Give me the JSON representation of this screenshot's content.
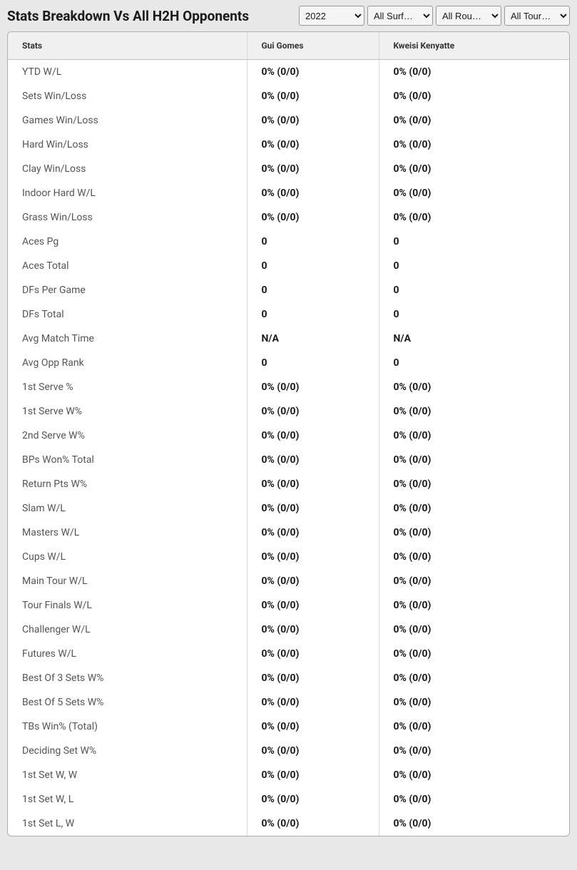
{
  "header": {
    "title": "Stats Breakdown Vs All H2H Opponents",
    "filters": {
      "year": {
        "selected": "2022",
        "options": [
          "2022"
        ]
      },
      "surface": {
        "selected": "All Surf…",
        "options": [
          "All Surf…"
        ]
      },
      "round": {
        "selected": "All Rou…",
        "options": [
          "All Rou…"
        ]
      },
      "tour": {
        "selected": "All Tour…",
        "options": [
          "All Tour…"
        ]
      }
    }
  },
  "table": {
    "columns": {
      "stats": "Stats",
      "player1": "Gui Gomes",
      "player2": "Kweisi Kenyatte"
    },
    "rows": [
      {
        "label": "YTD W/L",
        "p1": "0% (0/0)",
        "p2": "0% (0/0)"
      },
      {
        "label": "Sets Win/Loss",
        "p1": "0% (0/0)",
        "p2": "0% (0/0)"
      },
      {
        "label": "Games Win/Loss",
        "p1": "0% (0/0)",
        "p2": "0% (0/0)"
      },
      {
        "label": "Hard Win/Loss",
        "p1": "0% (0/0)",
        "p2": "0% (0/0)"
      },
      {
        "label": "Clay Win/Loss",
        "p1": "0% (0/0)",
        "p2": "0% (0/0)"
      },
      {
        "label": "Indoor Hard W/L",
        "p1": "0% (0/0)",
        "p2": "0% (0/0)"
      },
      {
        "label": "Grass Win/Loss",
        "p1": "0% (0/0)",
        "p2": "0% (0/0)"
      },
      {
        "label": "Aces Pg",
        "p1": "0",
        "p2": "0"
      },
      {
        "label": "Aces Total",
        "p1": "0",
        "p2": "0"
      },
      {
        "label": "DFs Per Game",
        "p1": "0",
        "p2": "0"
      },
      {
        "label": "DFs Total",
        "p1": "0",
        "p2": "0"
      },
      {
        "label": "Avg Match Time",
        "p1": "N/A",
        "p2": "N/A"
      },
      {
        "label": "Avg Opp Rank",
        "p1": "0",
        "p2": "0"
      },
      {
        "label": "1st Serve %",
        "p1": "0% (0/0)",
        "p2": "0% (0/0)"
      },
      {
        "label": "1st Serve W%",
        "p1": "0% (0/0)",
        "p2": "0% (0/0)"
      },
      {
        "label": "2nd Serve W%",
        "p1": "0% (0/0)",
        "p2": "0% (0/0)"
      },
      {
        "label": "BPs Won% Total",
        "p1": "0% (0/0)",
        "p2": "0% (0/0)"
      },
      {
        "label": "Return Pts W%",
        "p1": "0% (0/0)",
        "p2": "0% (0/0)"
      },
      {
        "label": "Slam W/L",
        "p1": "0% (0/0)",
        "p2": "0% (0/0)"
      },
      {
        "label": "Masters W/L",
        "p1": "0% (0/0)",
        "p2": "0% (0/0)"
      },
      {
        "label": "Cups W/L",
        "p1": "0% (0/0)",
        "p2": "0% (0/0)"
      },
      {
        "label": "Main Tour W/L",
        "p1": "0% (0/0)",
        "p2": "0% (0/0)"
      },
      {
        "label": "Tour Finals W/L",
        "p1": "0% (0/0)",
        "p2": "0% (0/0)"
      },
      {
        "label": "Challenger W/L",
        "p1": "0% (0/0)",
        "p2": "0% (0/0)"
      },
      {
        "label": "Futures W/L",
        "p1": "0% (0/0)",
        "p2": "0% (0/0)"
      },
      {
        "label": "Best Of 3 Sets W%",
        "p1": "0% (0/0)",
        "p2": "0% (0/0)"
      },
      {
        "label": "Best Of 5 Sets W%",
        "p1": "0% (0/0)",
        "p2": "0% (0/0)"
      },
      {
        "label": "TBs Win% (Total)",
        "p1": "0% (0/0)",
        "p2": "0% (0/0)"
      },
      {
        "label": "Deciding Set W%",
        "p1": "0% (0/0)",
        "p2": "0% (0/0)"
      },
      {
        "label": "1st Set W, W",
        "p1": "0% (0/0)",
        "p2": "0% (0/0)"
      },
      {
        "label": "1st Set W, L",
        "p1": "0% (0/0)",
        "p2": "0% (0/0)"
      },
      {
        "label": "1st Set L, W",
        "p1": "0% (0/0)",
        "p2": "0% (0/0)"
      }
    ]
  },
  "colors": {
    "page_bg": "#e8e8e8",
    "table_bg": "#ffffff",
    "header_bg": "#f0f0f0",
    "border": "#b0b0b0",
    "cell_border": "#d8d8d8",
    "text_title": "#1a1a1a",
    "text_header": "#333333",
    "text_label": "#555555",
    "text_value": "#1a1a1a"
  }
}
